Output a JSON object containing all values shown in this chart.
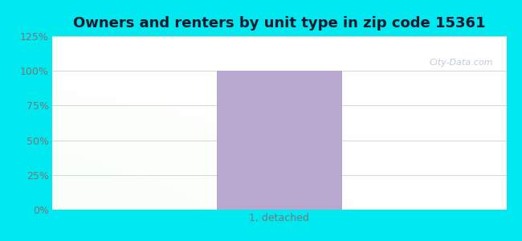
{
  "title": "Owners and renters by unit type in zip code 15361",
  "categories": [
    "1, detached"
  ],
  "values": [
    100
  ],
  "bar_color": "#b8a8d0",
  "ylim": [
    0,
    125
  ],
  "yticks": [
    0,
    25,
    50,
    75,
    100,
    125
  ],
  "ytick_labels": [
    "0%",
    "25%",
    "50%",
    "75%",
    "100%",
    "125%"
  ],
  "title_color": "#1a1a2e",
  "background_outer": "#00e8f0",
  "grid_color": "#ddeedd",
  "watermark": "City-Data.com",
  "title_fontsize": 13,
  "tick_fontsize": 9,
  "tick_color": "#777777",
  "xlabel_color": "#777777"
}
